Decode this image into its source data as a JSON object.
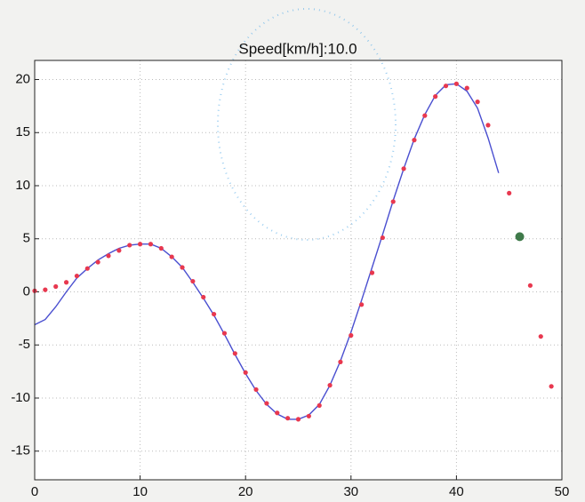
{
  "chart_data": {
    "type": "line",
    "title": "Speed[km/h]:10.0",
    "xlim": [
      0,
      50
    ],
    "xticks": [
      0,
      10,
      20,
      30,
      40,
      50
    ],
    "ylim": [
      -17.7,
      21.8
    ],
    "yticks": [
      -15,
      -10,
      -5,
      0,
      5,
      10,
      15,
      20
    ],
    "grid": true,
    "series": [
      {
        "color": "#4a4fd0",
        "style": "line",
        "x": [
          0,
          1,
          2,
          3,
          4,
          5,
          6,
          7,
          8,
          9,
          10,
          11,
          12,
          13,
          14,
          15,
          16,
          17,
          18,
          19,
          20,
          21,
          22,
          23,
          24,
          25,
          26,
          27,
          28,
          29,
          30,
          31,
          32,
          33,
          34,
          35,
          36,
          37,
          38,
          39,
          40,
          41,
          42,
          43,
          44
        ],
        "values": [
          -3.1,
          -2.6,
          -1.4,
          0.0,
          1.3,
          2.2,
          3.0,
          3.6,
          4.1,
          4.4,
          4.5,
          4.5,
          4.1,
          3.3,
          2.3,
          0.9,
          -0.6,
          -2.2,
          -4.0,
          -5.9,
          -7.7,
          -9.3,
          -10.6,
          -11.5,
          -12.0,
          -12.0,
          -11.6,
          -10.6,
          -8.8,
          -6.5,
          -3.8,
          -0.8,
          2.3,
          5.4,
          8.6,
          11.6,
          14.4,
          16.7,
          18.5,
          19.5,
          19.6,
          18.9,
          17.3,
          14.5,
          11.2
        ]
      },
      {
        "color": "#e8384f",
        "style": "marker",
        "size": 2.6,
        "x": [
          0,
          1,
          2,
          3,
          4,
          5,
          6,
          7,
          8,
          9,
          10,
          11,
          12,
          13,
          14,
          15,
          16,
          17,
          18,
          19,
          20,
          21,
          22,
          23,
          24,
          25,
          26,
          27,
          28,
          29,
          30,
          31,
          32,
          33,
          34,
          35,
          36,
          37,
          38,
          39,
          40,
          41,
          42,
          43,
          45,
          47,
          48,
          49
        ],
        "values": [
          0.1,
          0.2,
          0.5,
          0.9,
          1.5,
          2.2,
          2.8,
          3.4,
          3.9,
          4.4,
          4.5,
          4.5,
          4.1,
          3.3,
          2.3,
          1.0,
          -0.5,
          -2.1,
          -3.9,
          -5.8,
          -7.6,
          -9.2,
          -10.5,
          -11.4,
          -11.9,
          -12.0,
          -11.7,
          -10.7,
          -8.8,
          -6.6,
          -4.1,
          -1.2,
          1.8,
          5.1,
          8.5,
          11.6,
          14.3,
          16.6,
          18.4,
          19.4,
          19.6,
          19.2,
          17.9,
          15.7,
          9.3,
          0.6,
          -4.2,
          -8.9
        ]
      },
      {
        "color": "#3f7a4a",
        "style": "marker",
        "size": 5,
        "x": [
          46
        ],
        "values": [
          5.2
        ]
      }
    ]
  }
}
